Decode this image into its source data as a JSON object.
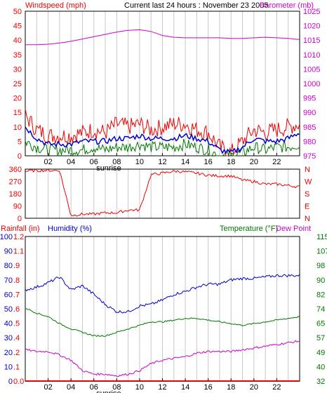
{
  "header": {
    "windspeed_label": "Windspeed (mph)",
    "title": "Current last 24 hours : November 23 2005",
    "barometer_label": "Barometer (mb)"
  },
  "colors": {
    "wind_gust": "#ee0000",
    "wind_avg": "#0000cc",
    "wind_low": "#007700",
    "barometer": "#cc00cc",
    "direction": "#ee0000",
    "rain": "#ee0000",
    "humidity": "#0000cc",
    "temperature": "#007700",
    "dewpoint": "#cc00cc",
    "grid": "#c8c8c8",
    "frame": "#000000"
  },
  "x_axis": {
    "ticks": [
      "02",
      "04",
      "06",
      "08",
      "10",
      "12",
      "14",
      "16",
      "18",
      "20",
      "22"
    ],
    "sunrise_label": "sunrise"
  },
  "chart_data": [
    {
      "type": "line",
      "title": "Current last 24 hours : November 23 2005",
      "ylabel_left": "Windspeed (mph)",
      "ylabel_right": "Barometer (mb)",
      "ylim_left": [
        0,
        50
      ],
      "yticks_left": [
        "0",
        "5",
        "10",
        "15",
        "20",
        "25",
        "30",
        "35",
        "40",
        "45",
        "50"
      ],
      "ylim_right": [
        975,
        1025
      ],
      "yticks_right": [
        "975",
        "980",
        "985",
        "990",
        "995",
        "1000",
        "1005",
        "1010",
        "1015",
        "1020",
        "1025"
      ],
      "x": [
        0,
        1,
        2,
        3,
        4,
        5,
        6,
        7,
        8,
        9,
        10,
        11,
        12,
        13,
        14,
        15,
        16,
        17,
        18,
        19,
        20,
        21,
        22,
        23,
        24
      ],
      "series": [
        {
          "color_key": "wind_gust",
          "axis": "left",
          "values": [
            14,
            9,
            7,
            7,
            7,
            8,
            9,
            8,
            11,
            10,
            11,
            9,
            10,
            11,
            11,
            9,
            8,
            3,
            1,
            5,
            9,
            8,
            9,
            10,
            11
          ]
        },
        {
          "color_key": "wind_avg",
          "axis": "left",
          "values": [
            10,
            6,
            4,
            4,
            4,
            5,
            5,
            5,
            6,
            6,
            7,
            6,
            6,
            6,
            7,
            6,
            5,
            2,
            1,
            3,
            6,
            5,
            5,
            6,
            8
          ]
        },
        {
          "color_key": "wind_low",
          "axis": "left",
          "values": [
            5,
            3,
            2,
            2,
            2,
            2,
            3,
            2,
            3,
            3,
            4,
            3,
            3,
            3,
            4,
            3,
            2,
            0,
            0,
            1,
            3,
            2,
            3,
            3,
            4
          ]
        },
        {
          "color_key": "barometer",
          "axis": "right",
          "values": [
            1013.4,
            1013.4,
            1013.6,
            1014.0,
            1014.6,
            1015.4,
            1016.2,
            1017.0,
            1017.8,
            1018.4,
            1018.6,
            1018.0,
            1016.6,
            1016.0,
            1015.8,
            1015.8,
            1015.8,
            1015.8,
            1015.6,
            1015.6,
            1015.8,
            1016.0,
            1015.8,
            1015.6,
            1015.2
          ]
        }
      ]
    },
    {
      "type": "line",
      "ylim": [
        0,
        360
      ],
      "yticks_left": [
        "0",
        "90",
        "180",
        "270",
        "360"
      ],
      "yticks_right": [
        "N",
        "W",
        "S",
        "E",
        "N"
      ],
      "x": [
        0,
        1,
        2,
        3,
        4,
        5,
        6,
        7,
        8,
        9,
        10,
        11,
        12,
        13,
        14,
        15,
        16,
        17,
        18,
        19,
        20,
        21,
        22,
        23,
        24
      ],
      "series": [
        {
          "color_key": "direction",
          "values": [
            345,
            350,
            350,
            350,
            20,
            30,
            30,
            40,
            40,
            60,
            60,
            320,
            330,
            345,
            340,
            330,
            315,
            310,
            310,
            280,
            270,
            250,
            250,
            240,
            230
          ]
        }
      ]
    },
    {
      "type": "line",
      "ylabel_left": "Rainfall (in)",
      "ylabel_humidity": "Humidity (%)",
      "ylabel_right": "Temperature (°F)",
      "ylabel_right2": "Dew Point",
      "ylim_humidity": [
        0,
        100
      ],
      "ylim_rain": [
        0,
        1.2
      ],
      "ylim_temp": [
        32,
        115
      ],
      "yticks_humidity": [
        "0",
        "10",
        "20",
        "30",
        "40",
        "50",
        "60",
        "70",
        "80",
        "90",
        "100"
      ],
      "yticks_rain": [
        "0.0",
        ".1",
        ".2",
        ".4",
        ".5",
        ".6",
        ".7",
        ".8",
        ".9",
        "1.1",
        "1.2"
      ],
      "yticks_temp": [
        "32",
        "40",
        "49",
        "57",
        "65",
        "74",
        "82",
        "90",
        "98",
        "107",
        "115"
      ],
      "x": [
        0,
        1,
        2,
        3,
        4,
        5,
        6,
        7,
        8,
        9,
        10,
        11,
        12,
        13,
        14,
        15,
        16,
        17,
        18,
        19,
        20,
        21,
        22,
        23,
        24
      ],
      "series": [
        {
          "color_key": "humidity",
          "axis": "humidity",
          "values": [
            63,
            65,
            68,
            72,
            63,
            66,
            60,
            53,
            48,
            48,
            52,
            53,
            56,
            60,
            62,
            65,
            67,
            67,
            70,
            71,
            71,
            72,
            73,
            73,
            73
          ]
        },
        {
          "color_key": "temperature",
          "axis": "temp",
          "values": [
            74,
            71,
            69,
            65,
            62,
            60,
            58,
            58,
            60,
            62,
            64,
            66,
            66,
            67,
            68,
            68,
            67,
            66,
            65,
            64,
            65,
            66,
            67,
            68,
            69
          ]
        },
        {
          "color_key": "dewpoint",
          "axis": "temp",
          "values": [
            50,
            49,
            49,
            47,
            44,
            38,
            36,
            36,
            35,
            36,
            38,
            42,
            44,
            45,
            46,
            48,
            49,
            49,
            49,
            50,
            51,
            52,
            53,
            54,
            55
          ]
        },
        {
          "color_key": "rain",
          "axis": "rain",
          "values": [
            0,
            0,
            0,
            0,
            0,
            0,
            0,
            0,
            0,
            0,
            0,
            0,
            0,
            0,
            0,
            0,
            0,
            0,
            0,
            0,
            0,
            0,
            0,
            0,
            0
          ]
        }
      ]
    }
  ]
}
